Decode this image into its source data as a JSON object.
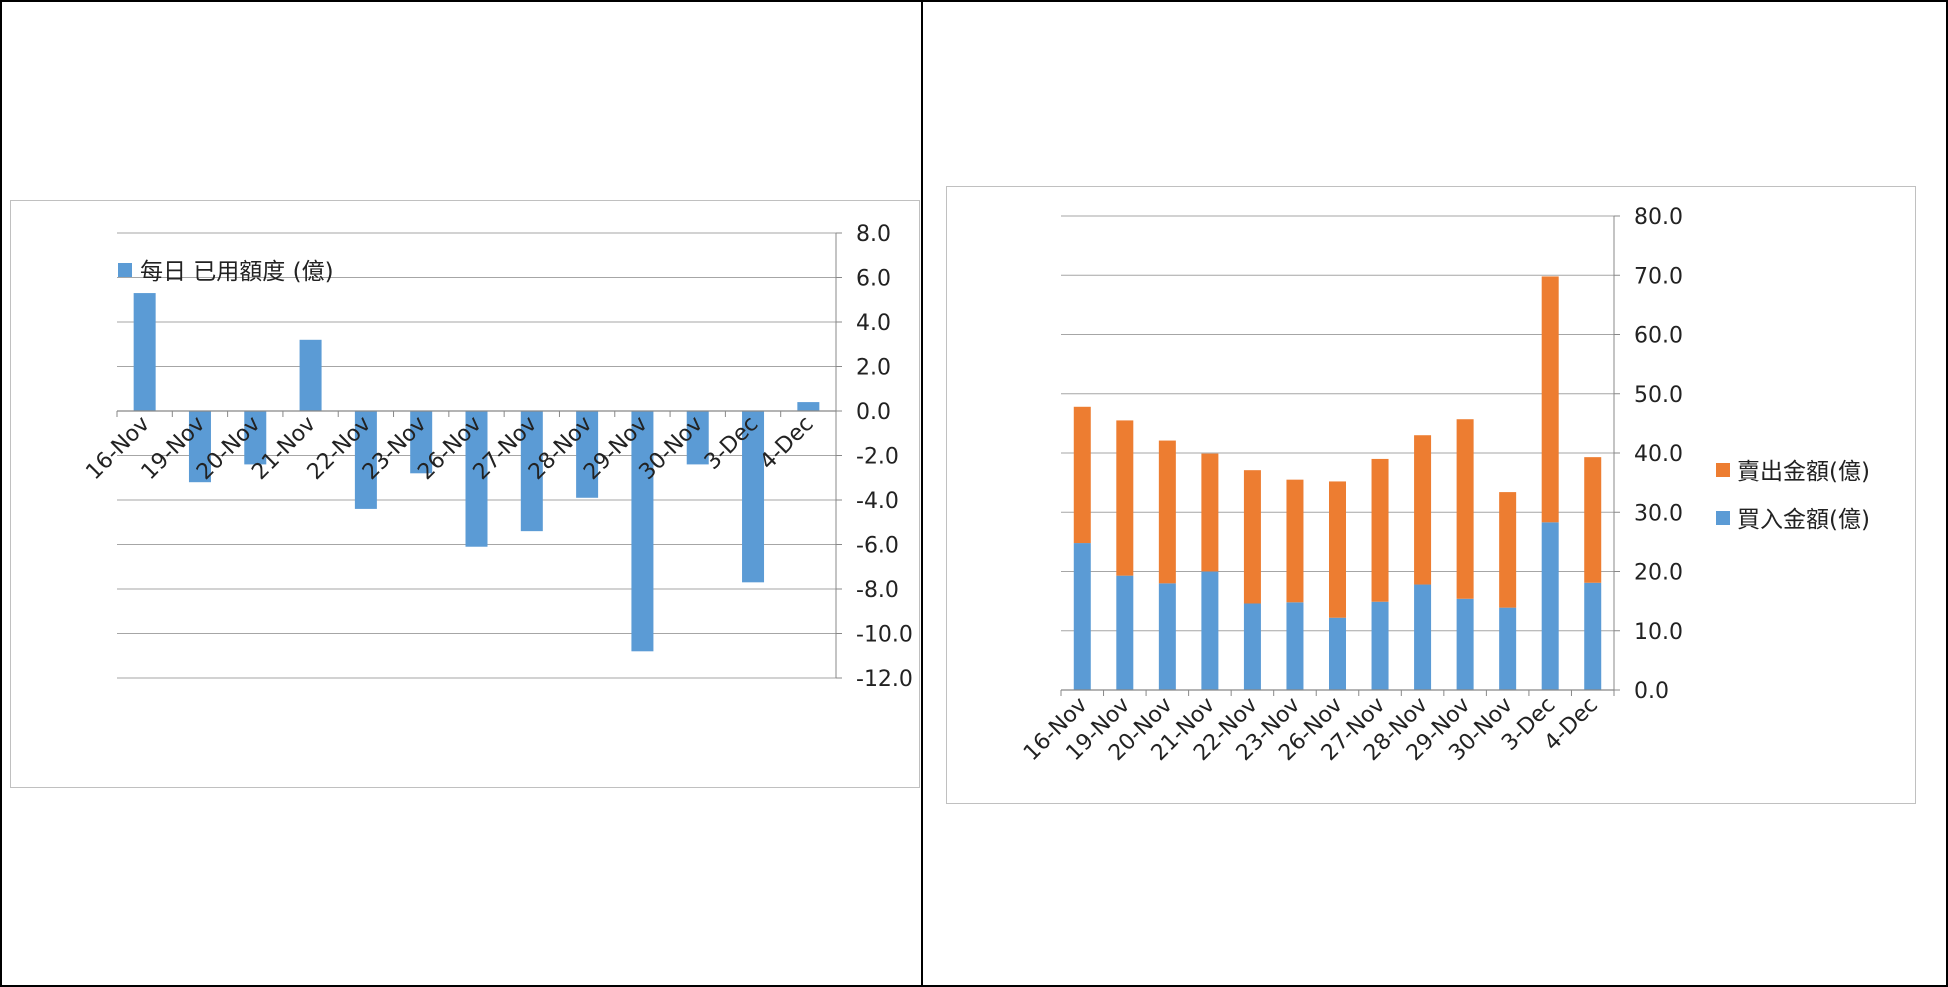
{
  "chart_data": [
    {
      "type": "bar",
      "categories": [
        "16-Nov",
        "19-Nov",
        "20-Nov",
        "21-Nov",
        "22-Nov",
        "23-Nov",
        "26-Nov",
        "27-Nov",
        "28-Nov",
        "29-Nov",
        "30-Nov",
        "3-Dec",
        "4-Dec"
      ],
      "series": [
        {
          "name": "每日 已用額度 (億)",
          "values": [
            5.3,
            -3.2,
            -2.4,
            3.2,
            -4.4,
            -2.8,
            -6.1,
            -5.4,
            -3.9,
            -10.8,
            -2.4,
            -7.7,
            0.4
          ],
          "color": "#5B9BD5"
        }
      ],
      "ylim": [
        -12,
        8
      ],
      "yticks": [
        "8.0",
        "6.0",
        "4.0",
        "2.0",
        "0.0",
        "-2.0",
        "-4.0",
        "-6.0",
        "-8.0",
        "-10.0",
        "-12.0"
      ],
      "y_axis_side": "right",
      "grid": true,
      "legend": "top-left"
    },
    {
      "type": "bar",
      "stacked": true,
      "categories": [
        "16-Nov",
        "19-Nov",
        "20-Nov",
        "21-Nov",
        "22-Nov",
        "23-Nov",
        "26-Nov",
        "27-Nov",
        "28-Nov",
        "29-Nov",
        "30-Nov",
        "3-Dec",
        "4-Dec"
      ],
      "series": [
        {
          "name": "買入金額(億)",
          "values": [
            24.8,
            19.3,
            18.0,
            20.0,
            14.6,
            14.8,
            12.2,
            14.9,
            17.8,
            15.4,
            13.9,
            28.3,
            18.1
          ],
          "color": "#5B9BD5"
        },
        {
          "name": "賣出金額(億)",
          "values": [
            23.0,
            26.2,
            24.1,
            19.9,
            22.5,
            20.7,
            23.0,
            24.1,
            25.2,
            30.3,
            19.5,
            41.5,
            21.2
          ],
          "color": "#ED7D31"
        }
      ],
      "ylim": [
        0,
        80
      ],
      "yticks": [
        "80.0",
        "70.0",
        "60.0",
        "50.0",
        "40.0",
        "30.0",
        "20.0",
        "10.0",
        "0.0"
      ],
      "y_axis_side": "right",
      "grid": true,
      "legend": "right"
    }
  ]
}
